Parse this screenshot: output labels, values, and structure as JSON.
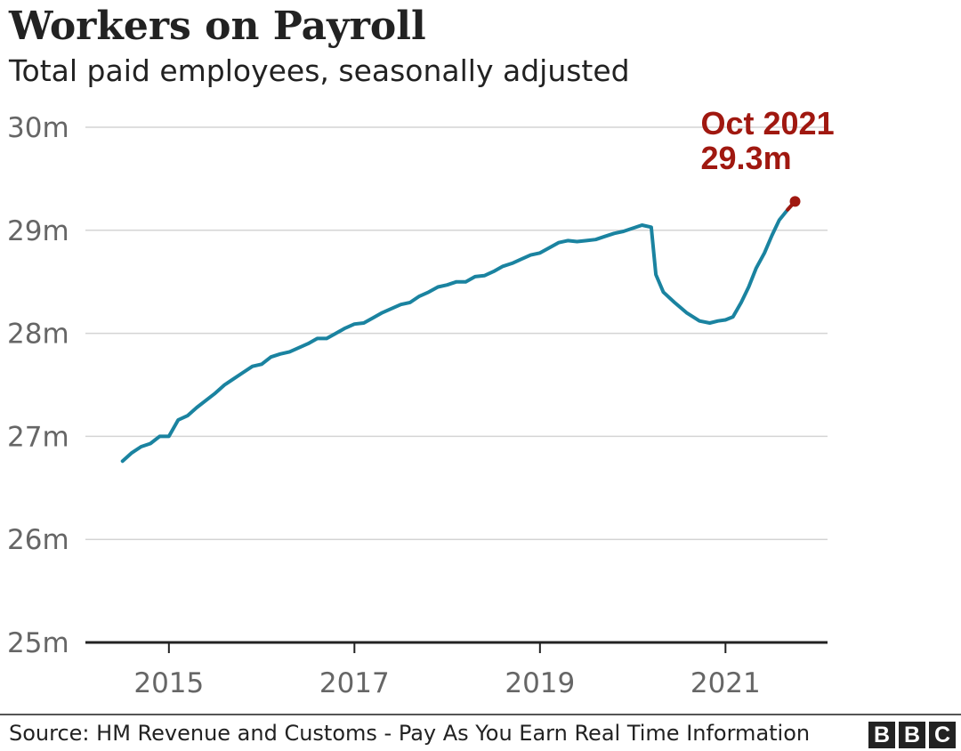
{
  "chart_data": {
    "type": "line",
    "title": "Workers on Payroll",
    "subtitle": "Total paid employees, seasonally adjusted",
    "ylim": [
      25,
      30
    ],
    "y_ticks": [
      25,
      26,
      27,
      28,
      29,
      30
    ],
    "y_tick_labels": [
      "25m",
      "26m",
      "27m",
      "28m",
      "29m",
      "30m"
    ],
    "x_ticks": [
      2015,
      2017,
      2019,
      2021
    ],
    "x_tick_labels": [
      "2015",
      "2017",
      "2019",
      "2021"
    ],
    "xlim": [
      2014.1,
      2022.1
    ],
    "series": [
      {
        "color": "#1a83a0",
        "x": [
          2014.5,
          2014.6,
          2014.7,
          2014.8,
          2014.9,
          2015.0,
          2015.1,
          2015.2,
          2015.3,
          2015.4,
          2015.5,
          2015.6,
          2015.7,
          2015.8,
          2015.9,
          2016.0,
          2016.1,
          2016.2,
          2016.3,
          2016.4,
          2016.5,
          2016.6,
          2016.7,
          2016.8,
          2016.9,
          2017.0,
          2017.1,
          2017.2,
          2017.3,
          2017.4,
          2017.5,
          2017.6,
          2017.7,
          2017.8,
          2017.9,
          2018.0,
          2018.1,
          2018.2,
          2018.3,
          2018.4,
          2018.5,
          2018.6,
          2018.7,
          2018.8,
          2018.9,
          2019.0,
          2019.1,
          2019.2,
          2019.3,
          2019.4,
          2019.5,
          2019.6,
          2019.7,
          2019.8,
          2019.9,
          2020.0,
          2020.1,
          2020.2,
          2020.25,
          2020.33,
          2020.45,
          2020.58,
          2020.72,
          2020.83,
          2020.92,
          2021.0,
          2021.08,
          2021.17,
          2021.25,
          2021.33,
          2021.42,
          2021.5,
          2021.58,
          2021.67,
          2021.75
        ],
        "y": [
          26.76,
          26.84,
          26.9,
          26.93,
          27.0,
          27.0,
          27.16,
          27.2,
          27.28,
          27.35,
          27.42,
          27.5,
          27.56,
          27.62,
          27.68,
          27.7,
          27.77,
          27.8,
          27.82,
          27.86,
          27.9,
          27.95,
          27.95,
          28.0,
          28.05,
          28.09,
          28.1,
          28.15,
          28.2,
          28.24,
          28.28,
          28.3,
          28.36,
          28.4,
          28.45,
          28.47,
          28.5,
          28.5,
          28.55,
          28.56,
          28.6,
          28.65,
          28.68,
          28.72,
          28.76,
          28.78,
          28.83,
          28.88,
          28.9,
          28.89,
          28.9,
          28.91,
          28.94,
          28.97,
          28.99,
          29.02,
          29.05,
          29.03,
          28.57,
          28.4,
          28.3,
          28.2,
          28.12,
          28.1,
          28.12,
          28.13,
          28.16,
          28.3,
          28.45,
          28.63,
          28.78,
          28.95,
          29.1,
          29.2,
          29.28
        ]
      }
    ],
    "annotation": {
      "label_date": "Oct 2021",
      "label_value": "29.3m",
      "x": 2021.75,
      "y": 29.28,
      "color": "#a01810"
    },
    "grid": true
  },
  "footer": {
    "source": "Source: HM Revenue and Customs - Pay As You Earn Real Time Information",
    "logo_letters": [
      "B",
      "B",
      "C"
    ]
  }
}
